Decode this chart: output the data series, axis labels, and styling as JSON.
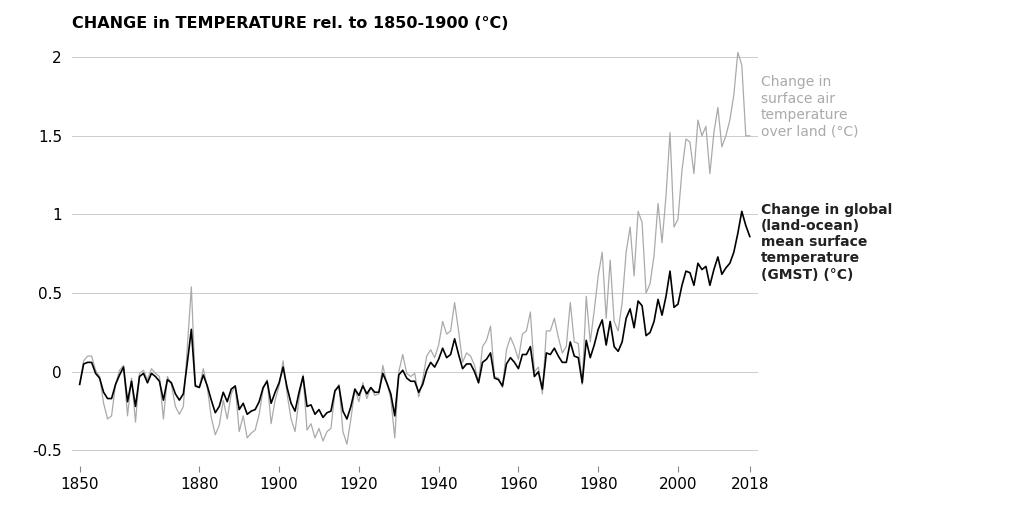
{
  "title": "CHANGE in TEMPERATURE rel. to 1850-1900 (°C)",
  "xlim": [
    1848,
    2020
  ],
  "ylim": [
    -0.6,
    2.1
  ],
  "yticks": [
    -0.5,
    0,
    0.5,
    1,
    1.5,
    2
  ],
  "xticks": [
    1850,
    1880,
    1900,
    1920,
    1940,
    1960,
    1980,
    2000,
    2018
  ],
  "label_land": "Change in\nsurface air\ntemperature\nover land (°C)",
  "label_gmst": "Change in global\n(land-ocean)\nmean surface\ntemperature\n(GMST) (°C)",
  "color_land": "#aaaaaa",
  "color_gmst": "#000000",
  "years": [
    1850,
    1851,
    1852,
    1853,
    1854,
    1855,
    1856,
    1857,
    1858,
    1859,
    1860,
    1861,
    1862,
    1863,
    1864,
    1865,
    1866,
    1867,
    1868,
    1869,
    1870,
    1871,
    1872,
    1873,
    1874,
    1875,
    1876,
    1877,
    1878,
    1879,
    1880,
    1881,
    1882,
    1883,
    1884,
    1885,
    1886,
    1887,
    1888,
    1889,
    1890,
    1891,
    1892,
    1893,
    1894,
    1895,
    1896,
    1897,
    1898,
    1899,
    1900,
    1901,
    1902,
    1903,
    1904,
    1905,
    1906,
    1907,
    1908,
    1909,
    1910,
    1911,
    1912,
    1913,
    1914,
    1915,
    1916,
    1917,
    1918,
    1919,
    1920,
    1921,
    1922,
    1923,
    1924,
    1925,
    1926,
    1927,
    1928,
    1929,
    1930,
    1931,
    1932,
    1933,
    1934,
    1935,
    1936,
    1937,
    1938,
    1939,
    1940,
    1941,
    1942,
    1943,
    1944,
    1945,
    1946,
    1947,
    1948,
    1949,
    1950,
    1951,
    1952,
    1953,
    1954,
    1955,
    1956,
    1957,
    1958,
    1959,
    1960,
    1961,
    1962,
    1963,
    1964,
    1965,
    1966,
    1967,
    1968,
    1969,
    1970,
    1971,
    1972,
    1973,
    1974,
    1975,
    1976,
    1977,
    1978,
    1979,
    1980,
    1981,
    1982,
    1983,
    1984,
    1985,
    1986,
    1987,
    1988,
    1989,
    1990,
    1991,
    1992,
    1993,
    1994,
    1995,
    1996,
    1997,
    1998,
    1999,
    2000,
    2001,
    2002,
    2003,
    2004,
    2005,
    2006,
    2007,
    2008,
    2009,
    2010,
    2011,
    2012,
    2013,
    2014,
    2015,
    2016,
    2017,
    2018
  ],
  "gmst": [
    -0.08,
    0.05,
    0.06,
    0.06,
    -0.01,
    -0.04,
    -0.13,
    -0.17,
    -0.17,
    -0.08,
    -0.02,
    0.03,
    -0.19,
    -0.06,
    -0.22,
    -0.03,
    -0.01,
    -0.07,
    -0.01,
    -0.03,
    -0.06,
    -0.18,
    -0.05,
    -0.07,
    -0.14,
    -0.18,
    -0.14,
    0.06,
    0.27,
    -0.09,
    -0.1,
    -0.02,
    -0.09,
    -0.18,
    -0.26,
    -0.22,
    -0.13,
    -0.19,
    -0.11,
    -0.09,
    -0.24,
    -0.2,
    -0.27,
    -0.25,
    -0.24,
    -0.19,
    -0.1,
    -0.06,
    -0.2,
    -0.13,
    -0.07,
    0.03,
    -0.1,
    -0.2,
    -0.25,
    -0.13,
    -0.03,
    -0.22,
    -0.21,
    -0.27,
    -0.24,
    -0.29,
    -0.26,
    -0.25,
    -0.12,
    -0.09,
    -0.25,
    -0.3,
    -0.22,
    -0.11,
    -0.15,
    -0.09,
    -0.14,
    -0.1,
    -0.13,
    -0.13,
    -0.01,
    -0.07,
    -0.14,
    -0.28,
    -0.02,
    0.01,
    -0.04,
    -0.06,
    -0.06,
    -0.13,
    -0.08,
    0.01,
    0.06,
    0.03,
    0.08,
    0.15,
    0.09,
    0.11,
    0.21,
    0.11,
    0.02,
    0.05,
    0.05,
    0.0,
    -0.07,
    0.06,
    0.08,
    0.12,
    -0.04,
    -0.05,
    -0.09,
    0.05,
    0.09,
    0.06,
    0.02,
    0.11,
    0.11,
    0.16,
    -0.03,
    0.0,
    -0.11,
    0.12,
    0.11,
    0.15,
    0.1,
    0.06,
    0.06,
    0.19,
    0.1,
    0.09,
    -0.07,
    0.2,
    0.09,
    0.17,
    0.27,
    0.33,
    0.17,
    0.32,
    0.16,
    0.13,
    0.19,
    0.34,
    0.4,
    0.28,
    0.45,
    0.42,
    0.23,
    0.25,
    0.32,
    0.46,
    0.36,
    0.48,
    0.64,
    0.41,
    0.43,
    0.55,
    0.64,
    0.63,
    0.55,
    0.69,
    0.65,
    0.67,
    0.55,
    0.65,
    0.73,
    0.62,
    0.66,
    0.69,
    0.76,
    0.88,
    1.02,
    0.93,
    0.86
  ],
  "land": [
    -0.08,
    0.07,
    0.1,
    0.1,
    0.01,
    -0.03,
    -0.2,
    -0.3,
    -0.28,
    -0.08,
    0.01,
    0.04,
    -0.28,
    -0.04,
    -0.32,
    -0.01,
    0.01,
    -0.05,
    0.02,
    -0.01,
    -0.03,
    -0.3,
    -0.03,
    -0.08,
    -0.22,
    -0.27,
    -0.22,
    0.16,
    0.54,
    -0.08,
    -0.1,
    0.02,
    -0.1,
    -0.29,
    -0.4,
    -0.34,
    -0.18,
    -0.3,
    -0.14,
    -0.09,
    -0.38,
    -0.28,
    -0.42,
    -0.39,
    -0.37,
    -0.27,
    -0.11,
    -0.05,
    -0.33,
    -0.18,
    -0.09,
    0.07,
    -0.14,
    -0.3,
    -0.38,
    -0.17,
    -0.02,
    -0.37,
    -0.33,
    -0.42,
    -0.36,
    -0.44,
    -0.38,
    -0.36,
    -0.13,
    -0.08,
    -0.38,
    -0.46,
    -0.3,
    -0.11,
    -0.19,
    -0.07,
    -0.17,
    -0.1,
    -0.15,
    -0.14,
    0.04,
    -0.07,
    -0.17,
    -0.42,
    0.0,
    0.11,
    -0.01,
    -0.03,
    -0.01,
    -0.16,
    -0.05,
    0.1,
    0.14,
    0.09,
    0.17,
    0.32,
    0.24,
    0.26,
    0.44,
    0.26,
    0.06,
    0.12,
    0.1,
    0.04,
    -0.07,
    0.16,
    0.2,
    0.29,
    -0.03,
    -0.04,
    -0.1,
    0.14,
    0.22,
    0.16,
    0.08,
    0.24,
    0.26,
    0.38,
    0.0,
    0.03,
    -0.14,
    0.26,
    0.26,
    0.34,
    0.22,
    0.12,
    0.16,
    0.44,
    0.19,
    0.18,
    -0.08,
    0.48,
    0.19,
    0.39,
    0.61,
    0.76,
    0.34,
    0.71,
    0.32,
    0.26,
    0.44,
    0.76,
    0.92,
    0.61,
    1.02,
    0.95,
    0.5,
    0.56,
    0.74,
    1.07,
    0.82,
    1.12,
    1.52,
    0.92,
    0.97,
    1.28,
    1.48,
    1.46,
    1.26,
    1.6,
    1.5,
    1.56,
    1.26,
    1.52,
    1.68,
    1.43,
    1.5,
    1.6,
    1.76,
    2.03,
    1.95,
    1.5,
    1.5
  ]
}
